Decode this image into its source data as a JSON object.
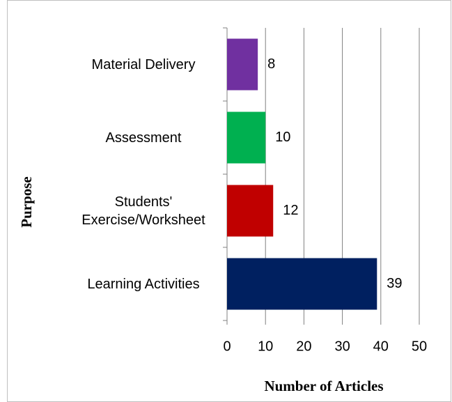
{
  "chart_data": {
    "type": "barh",
    "categories": [
      "Material Delivery",
      "Assessment",
      "Students' Exercise/Worksheet",
      "Learning Activities"
    ],
    "values": [
      8,
      10,
      12,
      39
    ],
    "colors": [
      "#7030a0",
      "#00b050",
      "#c00000",
      "#002060"
    ],
    "xlabel": "Number of Articles",
    "ylabel": "Purpose",
    "xlim": [
      0,
      50
    ],
    "xticks": [
      0,
      10,
      20,
      30,
      40,
      50
    ],
    "grid": true
  }
}
